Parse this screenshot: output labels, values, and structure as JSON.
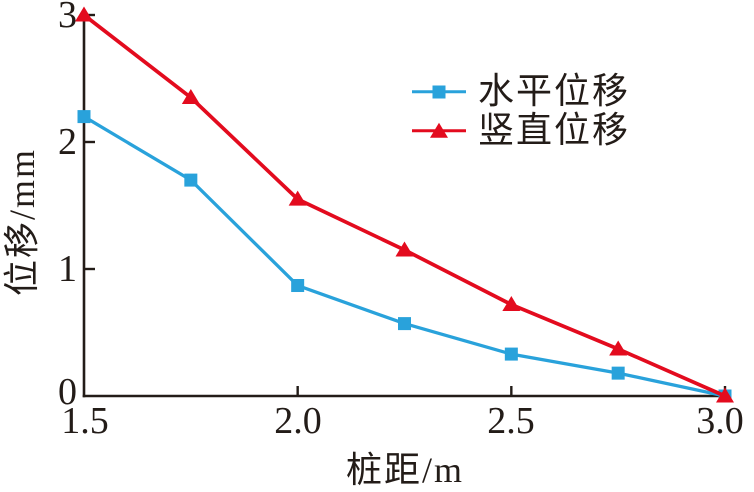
{
  "colors": {
    "background": "#ffffff",
    "axis": "#231c18",
    "text": "#231c18",
    "horizontal_series_blue": "#29a2db",
    "vertical_series_red": "#e30b1e"
  },
  "chart_data": {
    "type": "line",
    "title": "",
    "xlabel": "桩距/m",
    "ylabel": "位移/mm",
    "xlim": [
      1.5,
      3.0
    ],
    "ylim": [
      0,
      3
    ],
    "grid": false,
    "legend_position": "inside upper right",
    "x": [
      1.5,
      1.75,
      2.0,
      2.25,
      2.5,
      2.75,
      3.0
    ],
    "x_tick_values": [
      1.5,
      2.0,
      2.5,
      3.0
    ],
    "x_tick_labels": [
      "1.5",
      "2.0",
      "2.5",
      "3.0"
    ],
    "y_tick_values": [
      0,
      1,
      2,
      3
    ],
    "y_tick_labels": [
      "0",
      "1",
      "2",
      "3"
    ],
    "series": [
      {
        "id": "horizontal",
        "name": "水平位移",
        "marker": "square",
        "color": "#29a2db",
        "values": [
          2.2,
          1.7,
          0.87,
          0.57,
          0.33,
          0.18,
          0.0
        ]
      },
      {
        "id": "vertical",
        "name": "竖直位移",
        "marker": "triangle",
        "color": "#e30b1e",
        "values": [
          3.0,
          2.35,
          1.55,
          1.15,
          0.72,
          0.37,
          0.0
        ]
      }
    ]
  }
}
